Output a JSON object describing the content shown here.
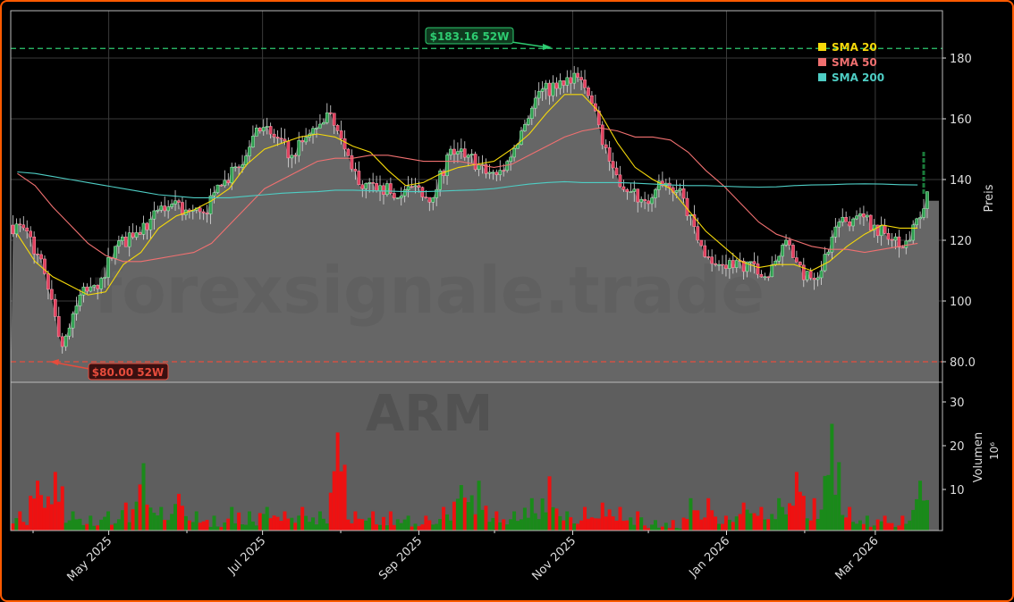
{
  "chart_data": [
    {
      "type": "candlestick",
      "ticker": "ARM",
      "watermark": "forexsignale.trade",
      "ylabel": "Preis",
      "ylim": [
        73,
        196
      ],
      "yticks": [
        80,
        100,
        120,
        140,
        160,
        180
      ],
      "ytick_labels": [
        "80.0",
        "100",
        "120",
        "140",
        "160",
        "180"
      ],
      "grid": true,
      "colors": {
        "up": "#2e9e4f",
        "down": "#e0405e",
        "area": "#666666",
        "high_line": "#2ecc71",
        "low_line": "#e74c3c"
      },
      "weekly_dates": [
        "2025-03-24",
        "2025-03-31",
        "2025-04-07",
        "2025-04-14",
        "2025-04-21",
        "2025-04-28",
        "2025-05-05",
        "2025-05-12",
        "2025-05-19",
        "2025-05-26",
        "2025-06-02",
        "2025-06-09",
        "2025-06-16",
        "2025-06-23",
        "2025-06-30",
        "2025-07-07",
        "2025-07-14",
        "2025-07-21",
        "2025-07-28",
        "2025-08-04",
        "2025-08-11",
        "2025-08-18",
        "2025-08-25",
        "2025-09-01",
        "2025-09-08",
        "2025-09-15",
        "2025-09-22",
        "2025-09-29",
        "2025-10-06",
        "2025-10-13",
        "2025-10-20",
        "2025-10-27",
        "2025-11-03",
        "2025-11-10",
        "2025-11-17",
        "2025-11-24",
        "2025-12-01",
        "2025-12-08",
        "2025-12-15",
        "2025-12-22",
        "2025-12-29",
        "2026-01-05",
        "2026-01-12",
        "2026-01-19",
        "2026-01-26",
        "2026-02-02",
        "2026-02-09",
        "2026-02-16",
        "2026-02-23",
        "2026-03-02",
        "2026-03-09",
        "2026-03-16"
      ],
      "close": [
        123,
        109,
        85,
        102,
        104,
        118,
        121,
        127,
        131,
        130,
        129,
        138,
        144,
        157,
        154,
        148,
        155,
        162,
        150,
        137,
        138,
        134,
        138,
        134,
        150,
        148,
        142,
        143,
        156,
        169,
        170,
        175,
        165,
        146,
        136,
        133,
        138,
        137,
        120,
        112,
        111,
        113,
        108,
        120,
        107,
        110,
        126,
        128,
        125,
        120,
        120,
        136
      ],
      "series": [
        {
          "name": "SMA 20",
          "color": "#f5d90a",
          "values": [
            122,
            113,
            108,
            105,
            102,
            103,
            112,
            116,
            124,
            128,
            130,
            133,
            137,
            145,
            150,
            152,
            154,
            155,
            154,
            151,
            149,
            143,
            138,
            139,
            142,
            144,
            145,
            146,
            150,
            155,
            162,
            168,
            168,
            162,
            152,
            144,
            140,
            137,
            130,
            123,
            118,
            113,
            111,
            112,
            112,
            110,
            113,
            118,
            122,
            125,
            124,
            124
          ]
        },
        {
          "name": "SMA 50",
          "color": "#f07070",
          "values": [
            142,
            138,
            131,
            125,
            119,
            115,
            113,
            113,
            114,
            115,
            116,
            119,
            125,
            131,
            137,
            140,
            143,
            146,
            147,
            147,
            148,
            148,
            147,
            146,
            146,
            146,
            145,
            144,
            145,
            148,
            151,
            154,
            156,
            157,
            156,
            154,
            154,
            153,
            149,
            143,
            138,
            132,
            126,
            122,
            120,
            118,
            117,
            117,
            116,
            117,
            118,
            119
          ]
        },
        {
          "name": "SMA 200",
          "color": "#4ecdc4",
          "values": [
            142.5,
            142,
            141,
            140,
            139,
            138,
            137,
            136,
            135,
            134.5,
            134,
            134,
            134,
            134.5,
            135,
            135.5,
            135.8,
            136,
            136.5,
            136.5,
            136.3,
            136.2,
            136,
            136,
            136.2,
            136.4,
            136.6,
            137,
            137.8,
            138.5,
            139,
            139.3,
            139,
            139,
            139,
            138.8,
            138.5,
            138.2,
            138,
            138,
            137.8,
            137.6,
            137.5,
            137.6,
            138,
            138.2,
            138.3,
            138.5,
            138.6,
            138.5,
            138.3,
            138.2
          ]
        }
      ],
      "annotations": [
        {
          "label": "$183.16 52W",
          "value": 183.16,
          "color": "#2ecc71"
        },
        {
          "label": "$80.00 52W",
          "value": 80.0,
          "color": "#e74c3c"
        }
      ],
      "legend": {
        "placement": "top-right",
        "entries": [
          "SMA 20",
          "SMA 50",
          "SMA 200"
        ]
      }
    },
    {
      "type": "bar",
      "ylabel": "Volumen",
      "yunit": "10⁶",
      "ylim": [
        0.6,
        30.5
      ],
      "yticks": [
        10,
        20,
        30
      ],
      "ytick_labels": [
        "10",
        "20",
        "30"
      ],
      "weekly_peak_volume": [
        5,
        12,
        14,
        5,
        4,
        5,
        7,
        16,
        6,
        9,
        5,
        4,
        6,
        5,
        6,
        5,
        6,
        5,
        23,
        5,
        5,
        5,
        4,
        4,
        6,
        11,
        12,
        5,
        5,
        8,
        13,
        5,
        6,
        7,
        6,
        5,
        3,
        3,
        8,
        8,
        4,
        7,
        6,
        8,
        14,
        8,
        25,
        6,
        4,
        4,
        4,
        12
      ]
    }
  ],
  "xaxis": {
    "ticks": [
      {
        "date": "2025-05-01",
        "label": "May 2025"
      },
      {
        "date": "2025-07-01",
        "label": "Jul 2025"
      },
      {
        "date": "2025-09-01",
        "label": "Sep 2025"
      },
      {
        "date": "2025-11-01",
        "label": "Nov 2025"
      },
      {
        "date": "2026-01-01",
        "label": "Jan 2026"
      },
      {
        "date": "2026-03-01",
        "label": "Mar 2026"
      }
    ],
    "minor_ticks": [
      "2025-04-01",
      "2025-06-01",
      "2025-08-01",
      "2025-10-01",
      "2025-12-01",
      "2026-02-01"
    ]
  }
}
